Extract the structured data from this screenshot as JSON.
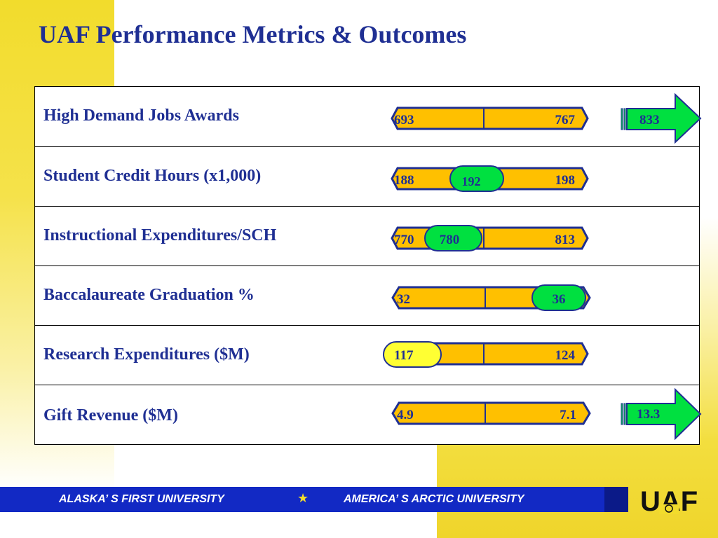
{
  "slide": {
    "title": "UAF Performance Metrics & Outcomes"
  },
  "metrics": [
    {
      "label": "High Demand Jobs Awards",
      "low": "693",
      "high": "767",
      "target": "833"
    },
    {
      "label": "Student Credit Hours (x1,000)",
      "low": "188",
      "high": "198",
      "actual": "192"
    },
    {
      "label": "Instructional Expenditures/SCH",
      "low": "770",
      "high": "813",
      "actual": "780"
    },
    {
      "label": "Baccalaureate Graduation %",
      "low": "32",
      "actual": "36"
    },
    {
      "label": "Research Expenditures ($M)",
      "high": "124",
      "actual": "117"
    },
    {
      "label": "Gift Revenue ($M)",
      "low": "4.9",
      "high": "7.1",
      "target": "13.3"
    }
  ],
  "footer": {
    "left_text": "ALASKA’ S FIRST UNIVERSITY",
    "separator": "★",
    "right_text": "AMERICA’ S ARCTIC UNIVERSITY",
    "logo_text": "UAF"
  },
  "colors": {
    "title": "#1f2f93",
    "bar_fill": "#ffc000",
    "bar_outline": "#1f2f93",
    "marker_green": "#00e040",
    "marker_yellow": "#ffff33",
    "arrow_green": "#00e040",
    "footer_blue": "#1229c4",
    "background_yellow": "#f2dc2c"
  }
}
